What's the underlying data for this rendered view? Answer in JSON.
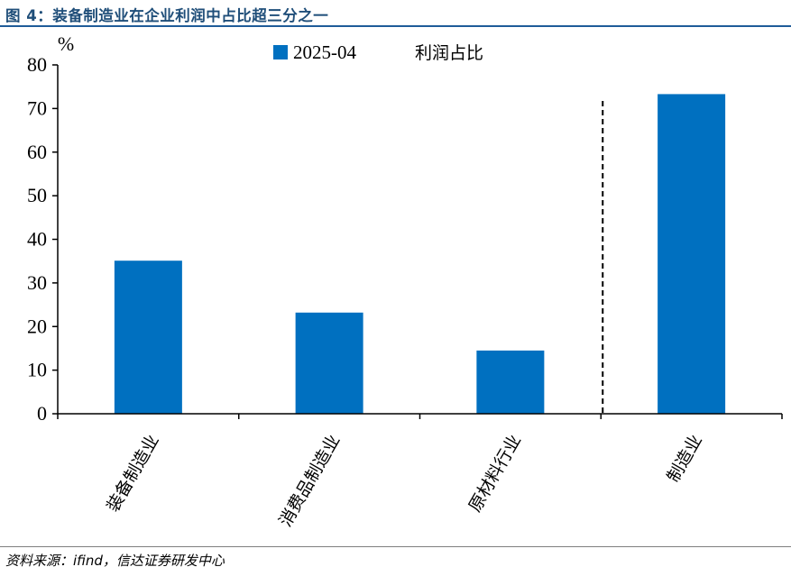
{
  "figure": {
    "title": "图 4：装备制造业在企业利润中占比超三分之一",
    "source": "资料来源：ifind，信达证券研发中心"
  },
  "chart_data": {
    "type": "bar",
    "ylabel": "%",
    "ylim": [
      0,
      80
    ],
    "yticks": [
      0,
      10,
      20,
      30,
      40,
      50,
      60,
      70,
      80
    ],
    "categories": [
      "装备制造业",
      "消费品制造业",
      "原材料行业",
      "制造业"
    ],
    "series": [
      {
        "name": "2025-04",
        "values": [
          35.1,
          23.2,
          14.5,
          73.3
        ],
        "color": "#0070c0"
      }
    ],
    "legend": {
      "placement": "top-center",
      "extra_label": "利润占比"
    },
    "separator_before_category": 3,
    "grid": false
  }
}
